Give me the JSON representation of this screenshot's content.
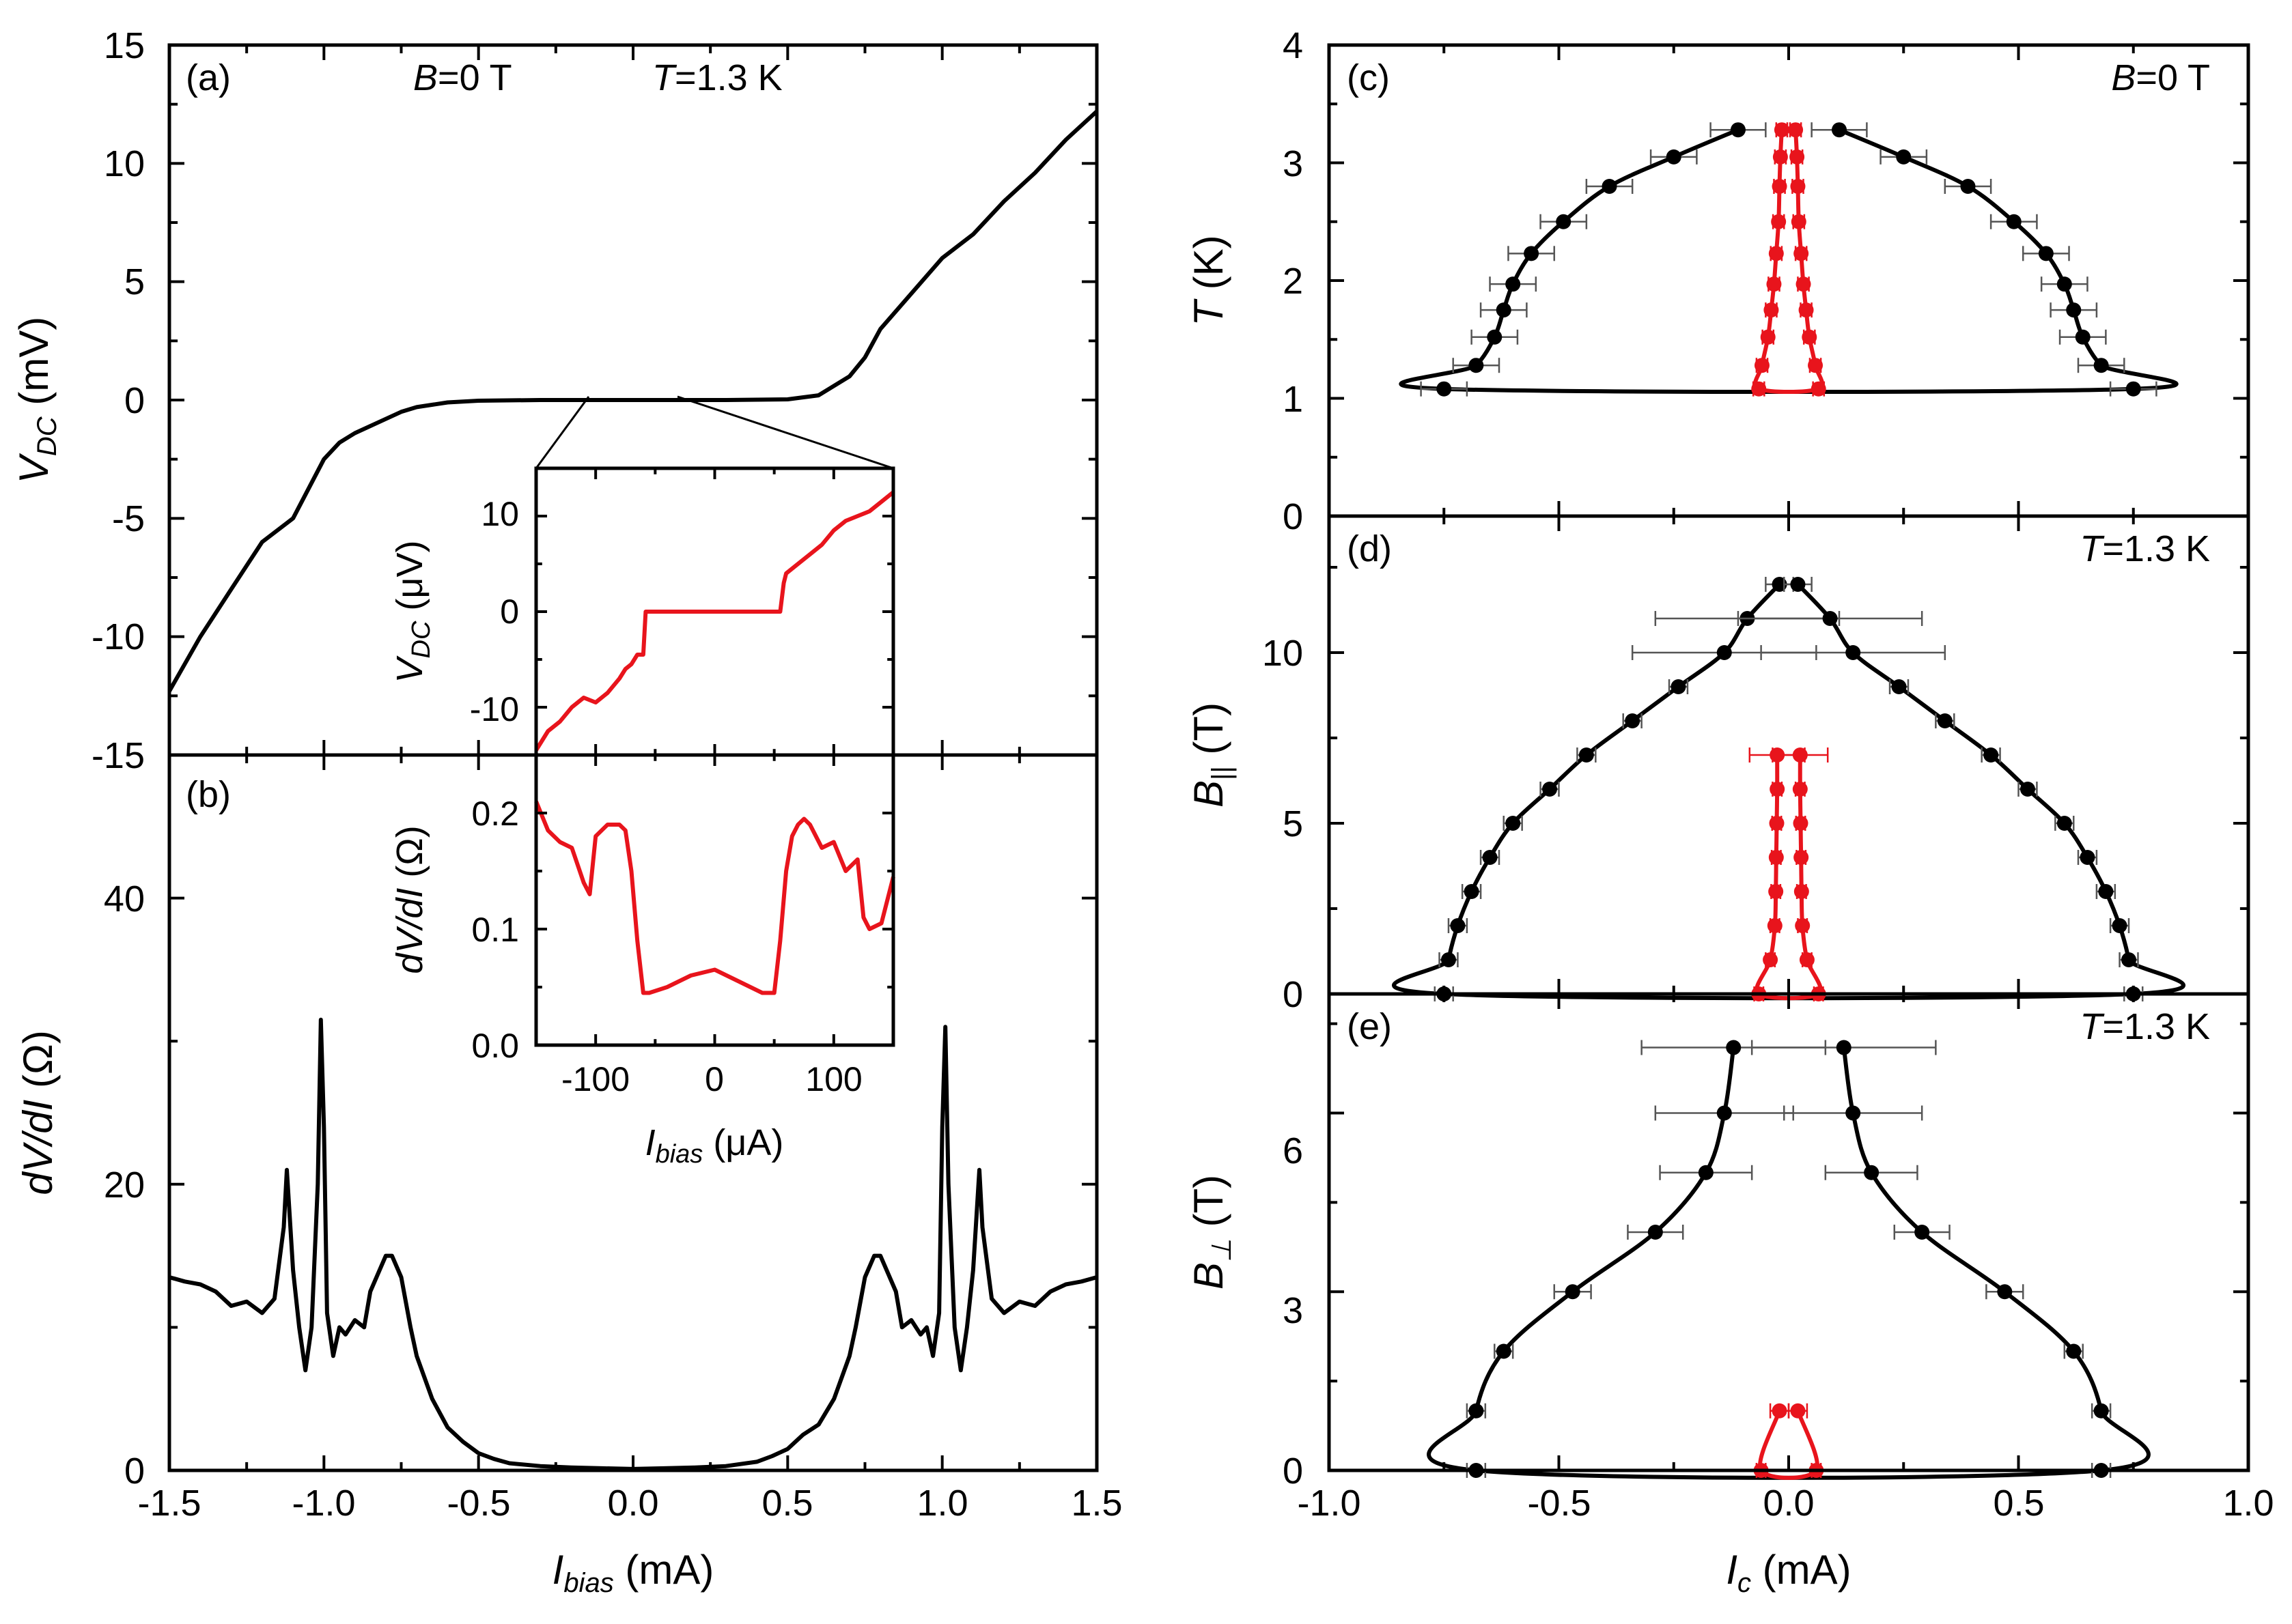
{
  "colors": {
    "black": "#000000",
    "red": "#e8141c",
    "errorbar": "#555555"
  },
  "chart_data": [
    {
      "id": "a",
      "type": "line",
      "panel_label": "(a)",
      "annotations": {
        "b": "B",
        "b_val": "=0 T",
        "t": "T",
        "t_val": "=1.3 K"
      },
      "xlim": [
        -1.5,
        1.5
      ],
      "ylim": [
        -15,
        15
      ],
      "yticks": [
        "15",
        "10",
        "5",
        "0",
        "-5",
        "-10",
        "-15"
      ],
      "ylabel": {
        "main": "V",
        "sub": "DC",
        "unit": " (mV)"
      },
      "series": [
        {
          "name": "V_DC vs I_bias",
          "color": "#000000",
          "x": [
            -1.5,
            -1.4,
            -1.3,
            -1.2,
            -1.1,
            -1.0,
            -0.95,
            -0.9,
            -0.8,
            -0.75,
            -0.7,
            -0.6,
            -0.5,
            -0.3,
            0,
            0.3,
            0.5,
            0.6,
            0.7,
            0.75,
            0.8,
            0.9,
            1.0,
            1.1,
            1.2,
            1.3,
            1.4,
            1.5
          ],
          "y": [
            -12.3,
            -10.0,
            -8.0,
            -6.0,
            -5.0,
            -2.5,
            -1.8,
            -1.4,
            -0.8,
            -0.5,
            -0.3,
            -0.1,
            -0.03,
            0,
            0,
            0,
            0.03,
            0.2,
            1.0,
            1.8,
            3.0,
            4.5,
            6.0,
            7.0,
            8.4,
            9.6,
            11.0,
            12.2
          ]
        }
      ]
    },
    {
      "id": "b",
      "type": "line",
      "panel_label": "(b)",
      "xlim": [
        -1.5,
        1.5
      ],
      "ylim": [
        0,
        50
      ],
      "xticks": [
        "-1.5",
        "-1.0",
        "-0.5",
        "0.0",
        "0.5",
        "1.0",
        "1.5"
      ],
      "yticks": [
        "40",
        "20",
        "0"
      ],
      "xlabel": {
        "main": "I",
        "sub": "bias",
        "unit": " (mA)"
      },
      "ylabel": {
        "main": "dV/dI",
        "unit": " (Ω)"
      },
      "series": [
        {
          "name": "dV/dI vs I_bias",
          "color": "#000000",
          "x": [
            -1.5,
            -1.45,
            -1.4,
            -1.35,
            -1.3,
            -1.25,
            -1.2,
            -1.16,
            -1.13,
            -1.12,
            -1.1,
            -1.08,
            -1.06,
            -1.04,
            -1.02,
            -1.01,
            -1.0,
            -0.99,
            -0.97,
            -0.95,
            -0.93,
            -0.9,
            -0.87,
            -0.85,
            -0.82,
            -0.8,
            -0.78,
            -0.75,
            -0.72,
            -0.7,
            -0.65,
            -0.6,
            -0.55,
            -0.5,
            -0.45,
            -0.4,
            -0.3,
            -0.2,
            -0.1,
            0,
            0.1,
            0.2,
            0.3,
            0.4,
            0.45,
            0.5,
            0.55,
            0.6,
            0.65,
            0.7,
            0.72,
            0.75,
            0.78,
            0.8,
            0.82,
            0.85,
            0.87,
            0.9,
            0.93,
            0.95,
            0.97,
            0.99,
            1.0,
            1.01,
            1.02,
            1.04,
            1.06,
            1.08,
            1.1,
            1.12,
            1.13,
            1.16,
            1.2,
            1.25,
            1.3,
            1.35,
            1.4,
            1.45,
            1.5
          ],
          "y": [
            13.5,
            13.2,
            13.0,
            12.5,
            11.5,
            11.8,
            11.0,
            12.0,
            17.0,
            21.0,
            14.0,
            10.0,
            7.0,
            10.0,
            20.0,
            31.5,
            24.0,
            11.0,
            8.0,
            10.0,
            9.5,
            10.5,
            10.0,
            12.5,
            14.0,
            15.0,
            15.0,
            13.5,
            10.0,
            8.0,
            5.0,
            3.0,
            2.0,
            1.2,
            0.8,
            0.5,
            0.3,
            0.2,
            0.15,
            0.1,
            0.15,
            0.2,
            0.3,
            0.6,
            1.0,
            1.5,
            2.5,
            3.2,
            5.0,
            8.0,
            10.0,
            13.5,
            15.0,
            15.0,
            14.0,
            12.5,
            10.0,
            10.5,
            9.5,
            10.0,
            8.0,
            11.0,
            24.0,
            31.0,
            20.0,
            10.0,
            7.0,
            10.0,
            14.0,
            21.0,
            17.0,
            12.0,
            11.0,
            11.8,
            11.5,
            12.5,
            13.0,
            13.2,
            13.5
          ]
        }
      ]
    },
    {
      "id": "inset-top",
      "type": "line",
      "xlim": [
        -150,
        150
      ],
      "ylim": [
        -15,
        15
      ],
      "yticks": [
        "10",
        "0",
        "-10"
      ],
      "ylabel": {
        "main": "V",
        "sub": "DC",
        "unit": " (μV)"
      },
      "series": [
        {
          "name": "zoom V_DC",
          "color": "#e8141c",
          "x": [
            -150,
            -140,
            -130,
            -120,
            -110,
            -100,
            -90,
            -80,
            -75,
            -70,
            -65,
            -60,
            -58,
            -55,
            -40,
            -20,
            0,
            20,
            40,
            55,
            58,
            60,
            70,
            80,
            90,
            100,
            110,
            120,
            130,
            140,
            150
          ],
          "y": [
            -14.5,
            -12.5,
            -11.5,
            -10.0,
            -9.0,
            -9.5,
            -8.5,
            -7.0,
            -6.0,
            -5.5,
            -4.5,
            -4.5,
            0.0,
            0.0,
            0.0,
            0.0,
            0.0,
            0.0,
            0.0,
            0.0,
            3.0,
            4.0,
            5.0,
            6.0,
            7.0,
            8.5,
            9.5,
            10.0,
            10.5,
            11.5,
            12.5
          ]
        }
      ]
    },
    {
      "id": "inset-bottom",
      "type": "line",
      "xlim": [
        -150,
        150
      ],
      "ylim": [
        0,
        0.25
      ],
      "xticks": [
        "-100",
        "0",
        "100"
      ],
      "yticks": [
        "0.2",
        "0.1",
        "0.0"
      ],
      "xlabel": {
        "main": "I",
        "sub": "bias",
        "unit": " (μA)"
      },
      "ylabel": {
        "main": "dV/dI",
        "unit": " (Ω)"
      },
      "series": [
        {
          "name": "zoom dV/dI",
          "color": "#e8141c",
          "x": [
            -150,
            -140,
            -130,
            -120,
            -110,
            -105,
            -100,
            -90,
            -80,
            -75,
            -70,
            -65,
            -60,
            -55,
            -40,
            -20,
            0,
            20,
            40,
            50,
            55,
            60,
            65,
            70,
            75,
            80,
            90,
            100,
            110,
            120,
            125,
            130,
            140,
            150
          ],
          "y": [
            0.21,
            0.185,
            0.175,
            0.17,
            0.14,
            0.13,
            0.18,
            0.19,
            0.19,
            0.185,
            0.15,
            0.09,
            0.045,
            0.045,
            0.05,
            0.06,
            0.065,
            0.055,
            0.045,
            0.045,
            0.09,
            0.15,
            0.18,
            0.19,
            0.195,
            0.19,
            0.17,
            0.175,
            0.15,
            0.16,
            0.11,
            0.1,
            0.105,
            0.145
          ]
        }
      ]
    },
    {
      "id": "c",
      "type": "scatter",
      "panel_label": "(c)",
      "annotations": {
        "b": "B",
        "b_val": "=0 T"
      },
      "xlim": [
        -1.0,
        1.0
      ],
      "ylim": [
        0,
        4
      ],
      "yticks": [
        "4",
        "3",
        "2",
        "1",
        "0"
      ],
      "ylabel": {
        "main": "T",
        "unit": " (K)"
      },
      "series": [
        {
          "name": "black",
          "color": "#000000",
          "y": [
            1.08,
            1.28,
            1.52,
            1.75,
            1.97,
            2.23,
            2.5,
            2.8,
            3.05,
            3.28
          ],
          "x": [
            0.75,
            0.68,
            0.64,
            0.62,
            0.6,
            0.56,
            0.49,
            0.39,
            0.25,
            0.11
          ],
          "err": [
            0.05,
            0.05,
            0.05,
            0.05,
            0.05,
            0.05,
            0.05,
            0.05,
            0.05,
            0.06
          ]
        },
        {
          "name": "red",
          "color": "#e8141c",
          "y": [
            1.08,
            1.28,
            1.52,
            1.75,
            1.97,
            2.23,
            2.5,
            2.8,
            3.05,
            3.28
          ],
          "x": [
            0.065,
            0.058,
            0.045,
            0.038,
            0.032,
            0.027,
            0.022,
            0.02,
            0.018,
            0.015
          ],
          "err": [
            0.012,
            0.012,
            0.012,
            0.012,
            0.012,
            0.012,
            0.012,
            0.012,
            0.012,
            0.012
          ]
        }
      ]
    },
    {
      "id": "d",
      "type": "scatter",
      "panel_label": "(d)",
      "annotations": {
        "t": "T",
        "t_val": "=1.3 K"
      },
      "xlim": [
        -1.0,
        1.0
      ],
      "ylim": [
        0,
        14
      ],
      "yticks": [
        "10",
        "5",
        "0"
      ],
      "ylabel": {
        "main": "B",
        "sub": "||",
        "unit": " (T)"
      },
      "series": [
        {
          "name": "black",
          "color": "#000000",
          "y": [
            0,
            1,
            2,
            3,
            4,
            5,
            6,
            7,
            8,
            9,
            10,
            11,
            12
          ],
          "x": [
            0.75,
            0.74,
            0.72,
            0.69,
            0.65,
            0.6,
            0.52,
            0.44,
            0.34,
            0.24,
            0.14,
            0.09,
            0.02
          ],
          "err": [
            0.02,
            0.02,
            0.02,
            0.02,
            0.02,
            0.02,
            0.02,
            0.02,
            0.02,
            0.02,
            0.2,
            0.2,
            0.03
          ]
        },
        {
          "name": "red",
          "color": "#e8141c",
          "y": [
            0,
            1,
            2,
            3,
            4,
            5,
            6,
            7
          ],
          "x": [
            0.065,
            0.04,
            0.03,
            0.028,
            0.027,
            0.026,
            0.025,
            0.025
          ],
          "err": [
            0.01,
            0.01,
            0.01,
            0.01,
            0.01,
            0.01,
            0.01,
            0.06
          ]
        }
      ]
    },
    {
      "id": "e",
      "type": "scatter",
      "panel_label": "(e)",
      "annotations": {
        "t": "T",
        "t_val": "=1.3 K"
      },
      "xlim": [
        -1.0,
        1.0
      ],
      "ylim": [
        0,
        8
      ],
      "xticks": [
        "-1.0",
        "-0.5",
        "0.0",
        "0.5",
        "1.0"
      ],
      "yticks": [
        "6",
        "3",
        "0"
      ],
      "xlabel": {
        "main": "I",
        "sub": "c",
        "unit": " (mA)"
      },
      "ylabel": {
        "main": "B",
        "sub": "⊥",
        "unit": " (T)"
      },
      "series": [
        {
          "name": "black",
          "color": "#000000",
          "y": [
            0,
            1,
            2,
            3,
            4,
            5,
            6,
            7.1
          ],
          "x": [
            0.68,
            0.68,
            0.62,
            0.47,
            0.29,
            0.18,
            0.14,
            0.12
          ],
          "err": [
            0.02,
            0.02,
            0.02,
            0.04,
            0.06,
            0.1,
            0.15,
            0.2
          ]
        },
        {
          "name": "red",
          "color": "#e8141c",
          "y": [
            0,
            1
          ],
          "x": [
            0.06,
            0.02
          ],
          "err": [
            0.01,
            0.02
          ]
        }
      ]
    }
  ]
}
